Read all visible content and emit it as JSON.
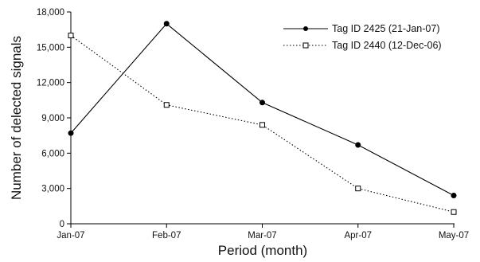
{
  "chart_data": {
    "type": "line",
    "title": "",
    "xlabel": "Period (month)",
    "ylabel": "Number of delected signals",
    "categories": [
      "Jan-07",
      "Feb-07",
      "Mar-07",
      "Apr-07",
      "May-07"
    ],
    "ylim": [
      0,
      18000
    ],
    "yticks": [
      "0",
      "3,000",
      "6,000",
      "9,000",
      "12,000",
      "15,000",
      "18,000"
    ],
    "grid": false,
    "legend_position": "top-right",
    "series": [
      {
        "name": "Tag ID 2425 (21-Jan-07)",
        "values": [
          7700,
          17000,
          10300,
          6700,
          2400
        ],
        "line_style": "solid",
        "marker": "filled-circle",
        "color": "#000000"
      },
      {
        "name": "Tag ID 2440 (12-Dec-06)",
        "values": [
          16000,
          10100,
          8400,
          3000,
          1000
        ],
        "line_style": "dotted",
        "marker": "open-square",
        "color": "#000000"
      }
    ]
  }
}
